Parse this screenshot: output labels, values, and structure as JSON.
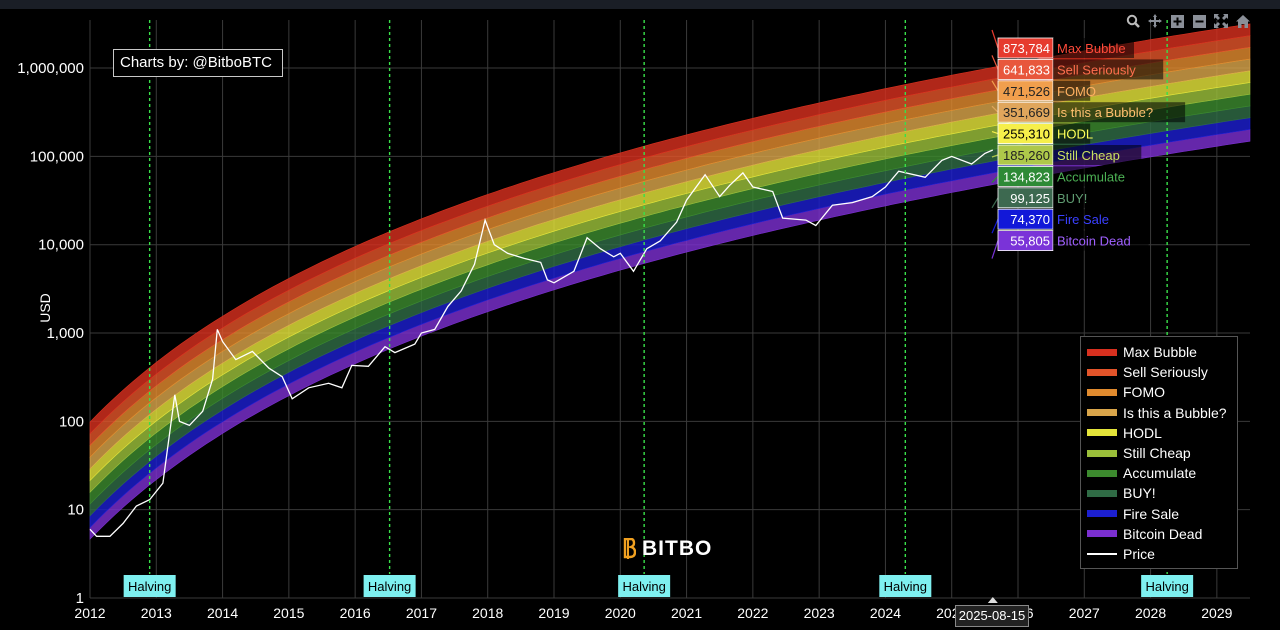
{
  "credit": "Charts by: @BitboBTC",
  "watermark": "BITBO",
  "hover_date": "2025-08-15",
  "modebar": {
    "icons": [
      "zoom-icon",
      "pan-icon",
      "zoom-in-icon",
      "zoom-out-icon",
      "autoscale-icon",
      "home-icon"
    ]
  },
  "chart_data": {
    "type": "area",
    "title": "",
    "ylabel": "USD",
    "xlabel": "",
    "yscale": "log",
    "ylim": [
      1,
      3500000
    ],
    "xlim": [
      2012.0,
      2029.5
    ],
    "x_ticks": [
      "2012",
      "2013",
      "2014",
      "2015",
      "2016",
      "2017",
      "2018",
      "2019",
      "2020",
      "2021",
      "2022",
      "2023",
      "2024",
      "2025",
      "2026",
      "2027",
      "2028",
      "2029"
    ],
    "y_ticks": [
      {
        "value": 1,
        "label": "1"
      },
      {
        "value": 10,
        "label": "10"
      },
      {
        "value": 100,
        "label": "100"
      },
      {
        "value": 1000,
        "label": "1,000"
      },
      {
        "value": 10000,
        "label": "10,000"
      },
      {
        "value": 100000,
        "label": "100,000"
      },
      {
        "value": 1000000,
        "label": "1,000,000"
      }
    ],
    "grid": true,
    "legend_position": "right-bottom",
    "bands": [
      {
        "name": "Max Bubble",
        "color": "#d7301f",
        "value_2025_08_15": "873,784"
      },
      {
        "name": "Sell Seriously",
        "color": "#e2542a",
        "value_2025_08_15": "641,833"
      },
      {
        "name": "FOMO",
        "color": "#e08a2e",
        "value_2025_08_15": "471,526"
      },
      {
        "name": "Is this a Bubble?",
        "color": "#d9a54a",
        "value_2025_08_15": "351,669"
      },
      {
        "name": "HODL",
        "color": "#e4e43a",
        "value_2025_08_15": "255,310"
      },
      {
        "name": "Still Cheap",
        "color": "#9bbf3a",
        "value_2025_08_15": "185,260"
      },
      {
        "name": "Accumulate",
        "color": "#3c8a2e",
        "value_2025_08_15": "134,823"
      },
      {
        "name": "BUY!",
        "color": "#2f6b45",
        "value_2025_08_15": "99,125"
      },
      {
        "name": "Fire Sale",
        "color": "#1c1fd0",
        "value_2025_08_15": "74,370"
      },
      {
        "name": "Bitcoin Dead",
        "color": "#7b2fd0",
        "value_2025_08_15": "55,805"
      }
    ],
    "price_series": {
      "name": "Price",
      "color": "#ffffff",
      "points": [
        [
          2012.0,
          6
        ],
        [
          2012.1,
          5
        ],
        [
          2012.3,
          5
        ],
        [
          2012.5,
          7
        ],
        [
          2012.7,
          11
        ],
        [
          2012.9,
          13
        ],
        [
          2013.1,
          20
        ],
        [
          2013.28,
          200
        ],
        [
          2013.35,
          100
        ],
        [
          2013.5,
          90
        ],
        [
          2013.7,
          130
        ],
        [
          2013.85,
          300
        ],
        [
          2013.92,
          1100
        ],
        [
          2014.0,
          800
        ],
        [
          2014.2,
          500
        ],
        [
          2014.45,
          620
        ],
        [
          2014.7,
          400
        ],
        [
          2014.9,
          320
        ],
        [
          2015.05,
          180
        ],
        [
          2015.3,
          240
        ],
        [
          2015.6,
          270
        ],
        [
          2015.8,
          240
        ],
        [
          2015.95,
          430
        ],
        [
          2016.2,
          420
        ],
        [
          2016.45,
          700
        ],
        [
          2016.6,
          600
        ],
        [
          2016.9,
          750
        ],
        [
          2017.0,
          1000
        ],
        [
          2017.2,
          1100
        ],
        [
          2017.4,
          2000
        ],
        [
          2017.6,
          3000
        ],
        [
          2017.8,
          6000
        ],
        [
          2017.96,
          19000
        ],
        [
          2018.1,
          10000
        ],
        [
          2018.3,
          8000
        ],
        [
          2018.55,
          7000
        ],
        [
          2018.8,
          6300
        ],
        [
          2018.9,
          4000
        ],
        [
          2019.0,
          3700
        ],
        [
          2019.3,
          5000
        ],
        [
          2019.5,
          12000
        ],
        [
          2019.7,
          9000
        ],
        [
          2019.9,
          7300
        ],
        [
          2020.0,
          8000
        ],
        [
          2020.2,
          5000
        ],
        [
          2020.4,
          9000
        ],
        [
          2020.6,
          11000
        ],
        [
          2020.85,
          18000
        ],
        [
          2021.0,
          32000
        ],
        [
          2021.28,
          62000
        ],
        [
          2021.5,
          35000
        ],
        [
          2021.65,
          47000
        ],
        [
          2021.85,
          65000
        ],
        [
          2022.0,
          45000
        ],
        [
          2022.3,
          40000
        ],
        [
          2022.45,
          20000
        ],
        [
          2022.8,
          19000
        ],
        [
          2022.95,
          16500
        ],
        [
          2023.2,
          28000
        ],
        [
          2023.5,
          30000
        ],
        [
          2023.8,
          35000
        ],
        [
          2024.0,
          45000
        ],
        [
          2024.2,
          68000
        ],
        [
          2024.6,
          58000
        ],
        [
          2024.85,
          90000
        ],
        [
          2025.0,
          100000
        ],
        [
          2025.3,
          82000
        ],
        [
          2025.5,
          108000
        ],
        [
          2025.62,
          118000
        ]
      ]
    },
    "halvings": [
      {
        "x": 2012.9,
        "label": "Halving"
      },
      {
        "x": 2016.52,
        "label": "Halving"
      },
      {
        "x": 2020.36,
        "label": "Halving"
      },
      {
        "x": 2024.3,
        "label": "Halving"
      },
      {
        "x": 2028.25,
        "label": "Halving"
      }
    ]
  }
}
